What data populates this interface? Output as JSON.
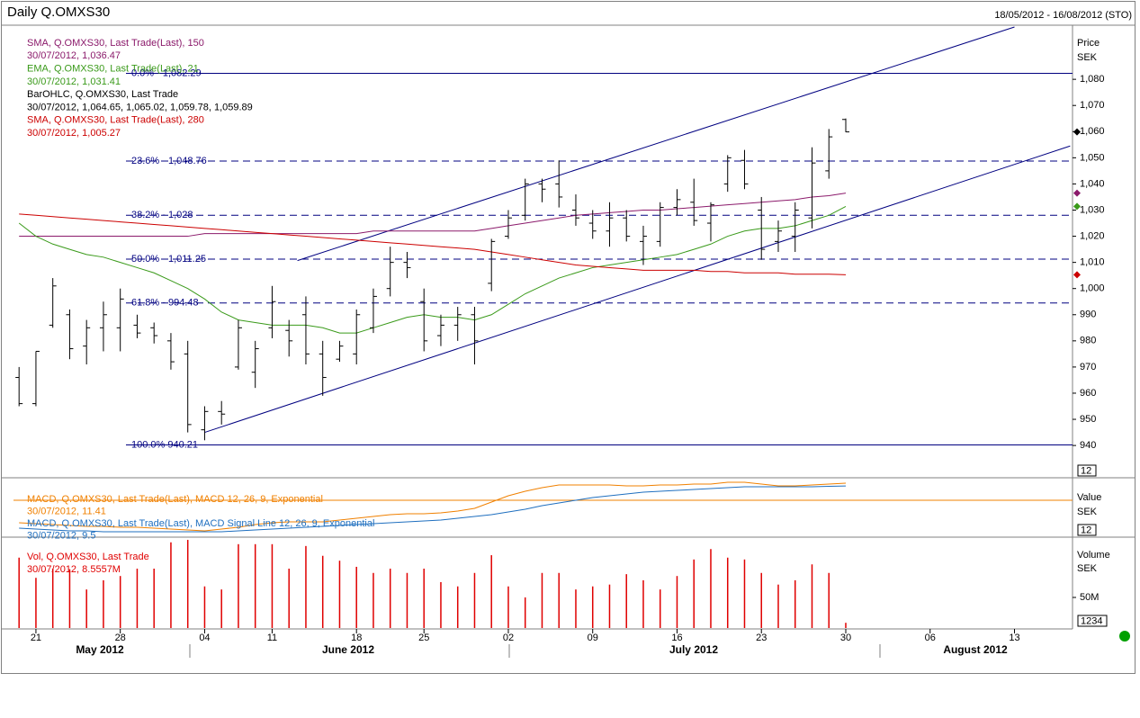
{
  "chart_data": [
    {
      "type": "ohlc",
      "title": "Daily Q.OMXS30",
      "subtitle": "18/05/2012 - 16/08/2012 (STO)",
      "y_label": "Price",
      "y_unit": "SEK",
      "scale_box": "12",
      "ylim": [
        928,
        1100
      ],
      "yticks": [
        940,
        950,
        960,
        970,
        980,
        990,
        {
          "value": 1000,
          "label": "1,000"
        },
        {
          "value": 1010,
          "label": "1,010"
        },
        {
          "value": 1020,
          "label": "1,020"
        },
        {
          "value": 1030,
          "label": "1,030"
        },
        {
          "value": 1040,
          "label": "1,040"
        },
        {
          "value": 1050,
          "label": "1,050"
        },
        {
          "value": 1060,
          "label": "1,060"
        },
        {
          "value": 1070,
          "label": "1,070"
        },
        {
          "value": 1080,
          "label": "1,080"
        }
      ],
      "xlim": [
        -0.33,
        62.44
      ],
      "xticks": [
        {
          "value": 1,
          "label": "21"
        },
        {
          "value": 6,
          "label": "28"
        },
        {
          "value": 11,
          "label": "04"
        },
        {
          "value": 15,
          "label": "11"
        },
        {
          "value": 20,
          "label": "18"
        },
        {
          "value": 24,
          "label": "25"
        },
        {
          "value": 29,
          "label": "02"
        },
        {
          "value": 34,
          "label": "09"
        },
        {
          "value": 39,
          "label": "16"
        },
        {
          "value": 44,
          "label": "23"
        },
        {
          "value": 49,
          "label": "30"
        },
        {
          "value": 54,
          "label": "06"
        },
        {
          "value": 59,
          "label": "13"
        }
      ],
      "months": [
        "May 2012",
        "June 2012",
        "July 2012",
        "August 2012"
      ],
      "ohlc": {
        "name": "BarOHLC, Q.OMXS30, Last Trade",
        "readout": "30/07/2012, 1,064.65, 1,065.02, 1,059.78, 1,059.89",
        "color": "#000000",
        "open": [
          966,
          956,
          986,
          990,
          978,
          985,
          985,
          986,
          985,
          980,
          975,
          946,
          953,
          970,
          968,
          985,
          984,
          990,
          975,
          973,
          975,
          985,
          1000,
          1010,
          995,
          982,
          986,
          990,
          1002,
          1020,
          1028,
          1040,
          1040,
          1030,
          1025,
          1022,
          1027,
          1018,
          1018,
          1031,
          1033,
          1025,
          1040,
          1049,
          1030,
          1018,
          1020,
          1027,
          1045,
          1064.65
        ],
        "high": [
          970,
          976,
          1004,
          992,
          988,
          995,
          1000,
          990,
          987,
          983,
          980,
          955,
          957,
          988,
          980,
          1001,
          988,
          997,
          980,
          980,
          992,
          1000,
          1016,
          1014,
          1000,
          990,
          993,
          993,
          1019,
          1030,
          1042,
          1042,
          1049,
          1036,
          1030,
          1033,
          1030,
          1024,
          1033,
          1038,
          1042,
          1033,
          1051,
          1053,
          1035,
          1026,
          1033,
          1054,
          1061,
          1065.02
        ],
        "low": [
          955,
          955,
          985,
          973,
          971,
          976,
          976,
          981,
          979,
          969,
          945,
          942,
          948,
          969,
          962,
          981,
          974,
          971,
          959,
          972,
          971,
          983,
          997,
          1004,
          976,
          978,
          980,
          971,
          999,
          1019,
          1026,
          1033,
          1031,
          1024,
          1019,
          1016,
          1018,
          1009,
          1016,
          1028,
          1024,
          1018,
          1037,
          1038,
          1011,
          1014,
          1014,
          1023,
          1042,
          1059.78
        ],
        "close": [
          956,
          976,
          1001,
          977,
          985,
          990,
          996,
          983,
          982,
          972,
          948,
          953,
          952,
          985,
          977,
          995,
          980,
          975,
          966,
          978,
          990,
          997,
          1010,
          1008,
          980,
          986,
          990,
          980,
          1018,
          1027,
          1040,
          1038,
          1035,
          1027,
          1022,
          1027,
          1020,
          1020,
          1031,
          1034,
          1026,
          1032,
          1050,
          1040,
          1015,
          1022,
          1030,
          1048,
          1058,
          1059.89
        ]
      },
      "series": [
        {
          "name": "SMA, Q.OMXS30, Last Trade(Last), 150",
          "readout": "30/07/2012, 1,036.47",
          "color": "#8b1a6b",
          "values": [
            1020,
            1020,
            1020,
            1020,
            1020,
            1020,
            1020,
            1020,
            1020,
            1020,
            1020,
            1021,
            1021,
            1021,
            1021,
            1021,
            1021,
            1021,
            1021,
            1021,
            1021,
            1022,
            1022,
            1022,
            1022,
            1022,
            1022,
            1022,
            1023,
            1024,
            1025,
            1026,
            1027,
            1028,
            1028.5,
            1029,
            1029.5,
            1030,
            1030,
            1030.5,
            1031,
            1031.5,
            1032,
            1032.5,
            1033,
            1033.5,
            1034,
            1035,
            1035.5,
            1036.47
          ]
        },
        {
          "name": "EMA, Q.OMXS30, Last Trade(Last), 21",
          "readout": "30/07/2012, 1,031.41",
          "color": "#3a9a1a",
          "values": [
            1025,
            1020,
            1017,
            1015,
            1013,
            1012,
            1010,
            1008,
            1006,
            1003,
            1000,
            996,
            991,
            988,
            987,
            986,
            986,
            986,
            985,
            983,
            983,
            985,
            987,
            989,
            990,
            989,
            989,
            988,
            990,
            994,
            998,
            1001,
            1004,
            1006,
            1008,
            1009,
            1010,
            1011,
            1012,
            1013,
            1015,
            1017,
            1020,
            1022,
            1023,
            1023,
            1024,
            1026,
            1028,
            1031.41
          ]
        },
        {
          "name": "SMA, Q.OMXS30, Last Trade(Last), 280",
          "readout": "30/07/2012, 1,005.27",
          "color": "#cc0000",
          "values": [
            1028.5,
            1028,
            1027.5,
            1027,
            1026.5,
            1026,
            1025.5,
            1025,
            1024.5,
            1024,
            1023.5,
            1023,
            1022.5,
            1022,
            1021.5,
            1021,
            1020.5,
            1020,
            1019.5,
            1019,
            1018.5,
            1018,
            1017.5,
            1017,
            1016.5,
            1016,
            1015.5,
            1015,
            1014,
            1013,
            1012,
            1011,
            1010,
            1009,
            1008.5,
            1008,
            1007.5,
            1007,
            1007,
            1007,
            1007,
            1006.5,
            1006.5,
            1006,
            1006,
            1006,
            1005.5,
            1005.5,
            1005.5,
            1005.27
          ]
        }
      ],
      "fib_color": "#000080",
      "fib_levels": [
        {
          "label": "0.0% - 1,082.29",
          "value": 1082.29,
          "style": "solid"
        },
        {
          "label": "23.6% - 1,048.76",
          "value": 1048.76,
          "style": "dashed"
        },
        {
          "label": "38.2% - 1,028",
          "value": 1028,
          "style": "dashed"
        },
        {
          "label": "50.0% - 1,011.25",
          "value": 1011.25,
          "style": "dashed"
        },
        {
          "label": "61.8% - 994.48",
          "value": 994.48,
          "style": "dashed"
        },
        {
          "label": "100.0% 940.21",
          "value": 940.21,
          "style": "solid"
        }
      ],
      "trendlines": [
        {
          "x": [
            11,
            62.3
          ],
          "y": [
            945,
            1054.5
          ]
        },
        {
          "x": [
            16.5,
            59
          ],
          "y": [
            1010.7,
            1100
          ]
        }
      ]
    },
    {
      "type": "line",
      "y_label": "Value",
      "y_unit": "SEK",
      "scale_box": "12",
      "ylim": [
        -24.6,
        13.8
      ],
      "reference_line": 0,
      "reference_color": "#f08000",
      "series": [
        {
          "name": "MACD, Q.OMXS30, Last Trade(Last), MACD 12, 26, 9, Exponential",
          "readout": "30/07/2012, 11.41",
          "color": "#f08000",
          "values": [
            -15,
            -15.6,
            -16.2,
            -16.8,
            -17.4,
            -17.4,
            -18,
            -18,
            -18.6,
            -19.2,
            -19.8,
            -20.4,
            -19.2,
            -18,
            -16.2,
            -15,
            -14.4,
            -14.4,
            -14.4,
            -13.2,
            -12,
            -10.8,
            -9.6,
            -9,
            -9,
            -8.4,
            -7.2,
            -5.4,
            -1.2,
            3,
            6,
            8.4,
            10.2,
            10.2,
            10.2,
            10.2,
            9.6,
            9.6,
            10.2,
            10.2,
            10.8,
            10.8,
            12,
            12,
            10.8,
            9.6,
            9.6,
            10.2,
            10.8,
            11.41
          ]
        },
        {
          "name": "MACD, Q.OMXS30, Last Trade(Last), MACD Signal Line 12, 26, 9, Exponential",
          "readout": "30/07/2012, 9.5",
          "color": "#1f6fbf",
          "values": [
            -18.6,
            -19.2,
            -19.8,
            -20.4,
            -20.4,
            -21,
            -21,
            -21,
            -21,
            -21,
            -21,
            -21,
            -21,
            -20.4,
            -19.8,
            -19.2,
            -18.6,
            -18,
            -17.4,
            -16.8,
            -16.2,
            -15.6,
            -15,
            -14.4,
            -13.8,
            -13.2,
            -12,
            -10.8,
            -9.6,
            -7.8,
            -6,
            -3.6,
            -1.8,
            0,
            1.8,
            3,
            4.2,
            5.4,
            6,
            6.6,
            7.2,
            7.8,
            8.4,
            9,
            9,
            9,
            9,
            9,
            9.3,
            9.5
          ]
        }
      ]
    },
    {
      "type": "bar",
      "y_label": "Volume",
      "y_unit": "SEK",
      "scale_box": "1234",
      "ylim": [
        0,
        147000000
      ],
      "yticks": [
        {
          "value": 50000000,
          "label": "50M"
        }
      ],
      "name": "Vol, Q.OMXS30, Last Trade",
      "readout": "30/07/2012, 8.5557M",
      "color": "#e00000",
      "values": [
        115000000,
        82000000,
        97000000,
        96000000,
        63000000,
        78000000,
        85000000,
        97000000,
        97000000,
        140000000,
        144000000,
        68000000,
        63000000,
        137000000,
        137000000,
        137000000,
        97000000,
        134000000,
        118000000,
        110000000,
        100000000,
        90000000,
        97000000,
        90000000,
        97000000,
        75000000,
        68000000,
        90000000,
        119000000,
        68000000,
        50000000,
        90000000,
        90000000,
        63000000,
        68000000,
        71000000,
        88000000,
        78000000,
        63000000,
        85000000,
        112000000,
        129000000,
        115000000,
        112000000,
        90000000,
        71000000,
        78000000,
        104000000,
        90000000,
        8555700
      ]
    }
  ]
}
